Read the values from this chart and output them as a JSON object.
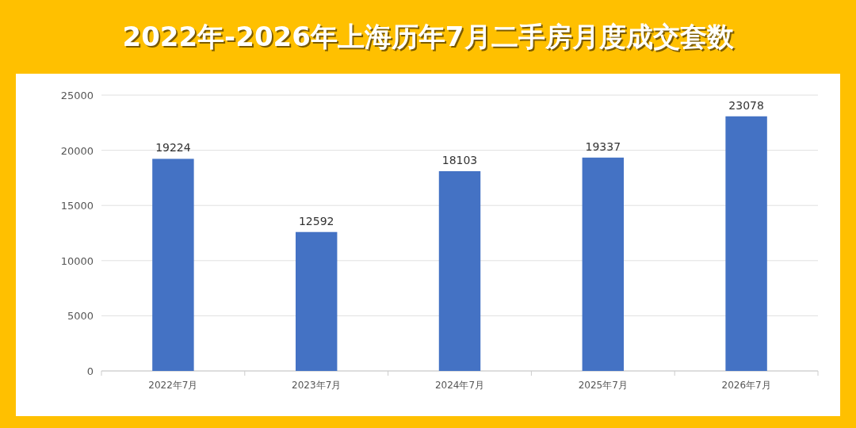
{
  "chart_data": {
    "type": "bar",
    "title": "2022年-2026年上海历年7月二手房月度成交套数",
    "categories": [
      "2022年7月",
      "2023年7月",
      "2024年7月",
      "2025年7月",
      "2026年7月"
    ],
    "values": [
      19224,
      12592,
      18103,
      19337,
      23078
    ],
    "color": "#4472c4",
    "ylim": [
      0,
      25000
    ],
    "yticks": [
      0,
      5000,
      10000,
      15000,
      20000,
      25000
    ],
    "grid": "y",
    "data_labels": true
  }
}
